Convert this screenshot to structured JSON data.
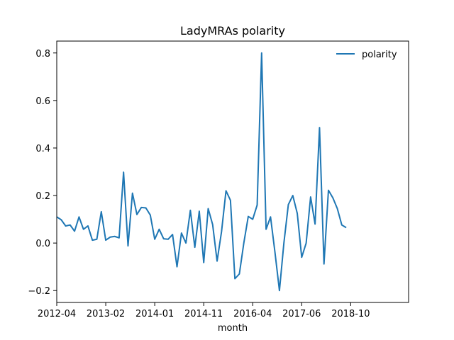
{
  "chart_data": {
    "type": "line",
    "title": "LadyMRAs polarity",
    "xlabel": "month",
    "ylabel": "",
    "legend": {
      "position": "top-right"
    },
    "grid": false,
    "xlim": [
      0,
      79
    ],
    "ylim": [
      -0.25,
      0.85
    ],
    "xticks": [
      {
        "index": 0,
        "label": "2012-04"
      },
      {
        "index": 11,
        "label": "2013-02"
      },
      {
        "index": 22,
        "label": "2014-01"
      },
      {
        "index": 33,
        "label": "2014-11"
      },
      {
        "index": 44,
        "label": "2016-04"
      },
      {
        "index": 55,
        "label": "2017-06"
      },
      {
        "index": 66,
        "label": "2018-10"
      }
    ],
    "yticks": [
      {
        "value": -0.2,
        "label": "−0.2"
      },
      {
        "value": 0.0,
        "label": "0.0"
      },
      {
        "value": 0.2,
        "label": "0.2"
      },
      {
        "value": 0.4,
        "label": "0.4"
      },
      {
        "value": 0.6,
        "label": "0.6"
      },
      {
        "value": 0.8,
        "label": "0.8"
      }
    ],
    "series": [
      {
        "name": "polarity",
        "color": "#1f77b4",
        "values": [
          0.11,
          0.098,
          0.072,
          0.076,
          0.05,
          0.11,
          0.058,
          0.072,
          0.012,
          0.016,
          0.132,
          0.012,
          0.025,
          0.028,
          0.022,
          0.298,
          -0.012,
          0.21,
          0.12,
          0.15,
          0.148,
          0.118,
          0.016,
          0.058,
          0.018,
          0.016,
          0.036,
          -0.1,
          0.042,
          0.0,
          0.138,
          -0.018,
          0.134,
          -0.082,
          0.145,
          0.078,
          -0.076,
          0.048,
          0.22,
          0.18,
          -0.15,
          -0.13,
          0.0,
          0.112,
          0.1,
          0.16,
          0.8,
          0.058,
          0.11,
          -0.04,
          -0.2,
          0.0,
          0.162,
          0.2,
          0.125,
          -0.06,
          0.0,
          0.194,
          0.08,
          0.486,
          -0.088,
          0.222,
          0.19,
          0.145,
          0.076,
          0.065
        ]
      }
    ]
  }
}
